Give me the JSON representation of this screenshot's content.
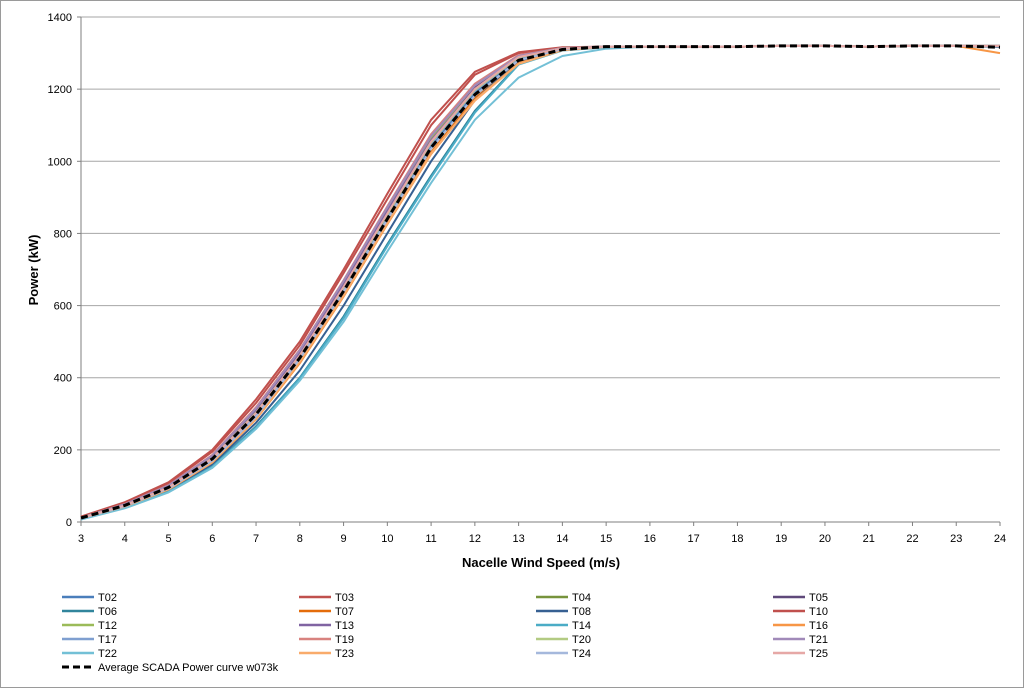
{
  "chart_data": {
    "type": "line",
    "title": "",
    "xlabel": "Nacelle Wind Speed (m/s)",
    "ylabel": "Power (kW)",
    "xlim": [
      3,
      24
    ],
    "ylim": [
      0,
      1400
    ],
    "x_ticks": [
      "3",
      "4",
      "5",
      "6",
      "7",
      "8",
      "9",
      "10",
      "11",
      "12",
      "13",
      "14",
      "15",
      "16",
      "17",
      "18",
      "19",
      "20",
      "21",
      "22",
      "23",
      "24"
    ],
    "y_ticks": [
      "0",
      "200",
      "400",
      "600",
      "800",
      "1000",
      "1200",
      "1400"
    ],
    "grid": "horizontal",
    "legend_position": "bottom",
    "x": [
      3,
      4,
      5,
      6,
      7,
      8,
      9,
      10,
      11,
      12,
      13,
      14,
      15,
      16,
      17,
      18,
      19,
      20,
      21,
      22,
      23,
      24
    ],
    "series": [
      {
        "name": "T02",
        "color": "#4a7ebb",
        "values": [
          10,
          45,
          95,
          170,
          295,
          455,
          640,
          840,
          1040,
          1190,
          1285,
          1312,
          1318,
          1318,
          1318,
          1318,
          1320,
          1320,
          1318,
          1320,
          1320,
          1318
        ]
      },
      {
        "name": "T03",
        "color": "#c0504d",
        "values": [
          15,
          55,
          110,
          200,
          340,
          500,
          700,
          910,
          1115,
          1248,
          1302,
          1316,
          1318,
          1318,
          1318,
          1318,
          1320,
          1320,
          1318,
          1320,
          1320,
          1320
        ]
      },
      {
        "name": "T04",
        "color": "#77933c",
        "values": [
          12,
          50,
          100,
          185,
          315,
          475,
          665,
          870,
          1065,
          1210,
          1292,
          1314,
          1318,
          1318,
          1318,
          1318,
          1320,
          1320,
          1318,
          1320,
          1320,
          1320
        ]
      },
      {
        "name": "T05",
        "color": "#5f497a",
        "values": [
          11,
          47,
          98,
          178,
          305,
          465,
          655,
          860,
          1060,
          1205,
          1290,
          1313,
          1318,
          1318,
          1318,
          1318,
          1320,
          1320,
          1318,
          1320,
          1320,
          1320
        ]
      },
      {
        "name": "T06",
        "color": "#31859c",
        "values": [
          8,
          40,
          85,
          155,
          265,
          400,
          570,
          770,
          960,
          1140,
          1270,
          1308,
          1316,
          1318,
          1318,
          1318,
          1320,
          1320,
          1318,
          1320,
          1320,
          1318
        ]
      },
      {
        "name": "T07",
        "color": "#e46c0a",
        "values": [
          10,
          44,
          92,
          168,
          290,
          450,
          632,
          830,
          1025,
          1175,
          1275,
          1310,
          1318,
          1318,
          1318,
          1318,
          1320,
          1320,
          1318,
          1320,
          1320,
          1318
        ]
      },
      {
        "name": "T08",
        "color": "#376092",
        "values": [
          9,
          42,
          88,
          160,
          275,
          420,
          600,
          800,
          1000,
          1170,
          1278,
          1310,
          1317,
          1318,
          1318,
          1318,
          1320,
          1320,
          1318,
          1320,
          1320,
          1318
        ]
      },
      {
        "name": "T10",
        "color": "#c0504d",
        "values": [
          14,
          53,
          107,
          195,
          330,
          490,
          690,
          895,
          1100,
          1240,
          1300,
          1315,
          1318,
          1318,
          1318,
          1318,
          1320,
          1320,
          1318,
          1320,
          1320,
          1320
        ]
      },
      {
        "name": "T12",
        "color": "#9bbb59",
        "values": [
          12,
          49,
          100,
          182,
          312,
          472,
          660,
          865,
          1062,
          1212,
          1293,
          1314,
          1318,
          1318,
          1318,
          1318,
          1320,
          1320,
          1318,
          1320,
          1320,
          1320
        ]
      },
      {
        "name": "T13",
        "color": "#8064a2",
        "values": [
          11,
          48,
          99,
          180,
          308,
          468,
          658,
          862,
          1058,
          1200,
          1288,
          1313,
          1318,
          1318,
          1318,
          1318,
          1320,
          1320,
          1318,
          1320,
          1320,
          1320
        ]
      },
      {
        "name": "T14",
        "color": "#4bacc6",
        "values": [
          8,
          40,
          84,
          153,
          262,
          398,
          565,
          765,
          955,
          1135,
          1268,
          1307,
          1316,
          1318,
          1318,
          1318,
          1320,
          1320,
          1318,
          1320,
          1320,
          1320
        ]
      },
      {
        "name": "T16",
        "color": "#f79646",
        "values": [
          10,
          43,
          90,
          165,
          285,
          440,
          625,
          825,
          1020,
          1170,
          1272,
          1309,
          1318,
          1318,
          1318,
          1318,
          1320,
          1320,
          1318,
          1320,
          1320,
          1300
        ]
      },
      {
        "name": "T17",
        "color": "#7f9fd0",
        "values": [
          11,
          46,
          96,
          175,
          300,
          460,
          648,
          850,
          1050,
          1195,
          1287,
          1312,
          1318,
          1318,
          1318,
          1318,
          1320,
          1320,
          1318,
          1320,
          1320,
          1320
        ]
      },
      {
        "name": "T19",
        "color": "#d8827f",
        "values": [
          12,
          50,
          102,
          186,
          318,
          478,
          670,
          875,
          1075,
          1215,
          1294,
          1314,
          1318,
          1318,
          1318,
          1318,
          1320,
          1320,
          1318,
          1320,
          1320,
          1320
        ]
      },
      {
        "name": "T20",
        "color": "#b3cb83",
        "values": [
          11,
          47,
          97,
          177,
          303,
          462,
          650,
          852,
          1052,
          1198,
          1288,
          1313,
          1318,
          1318,
          1318,
          1318,
          1320,
          1320,
          1318,
          1320,
          1320,
          1320
        ]
      },
      {
        "name": "T21",
        "color": "#a18ab9",
        "values": [
          12,
          49,
          101,
          184,
          315,
          476,
          668,
          872,
          1070,
          1210,
          1292,
          1314,
          1318,
          1318,
          1318,
          1318,
          1320,
          1320,
          1318,
          1320,
          1320,
          1320
        ]
      },
      {
        "name": "T22",
        "color": "#73c0d6",
        "values": [
          7,
          38,
          82,
          150,
          258,
          392,
          555,
          750,
          940,
          1115,
          1232,
          1292,
          1312,
          1318,
          1318,
          1318,
          1320,
          1320,
          1318,
          1320,
          1320,
          1320
        ]
      },
      {
        "name": "T23",
        "color": "#f9ab6b",
        "values": [
          10,
          43,
          91,
          166,
          287,
          445,
          628,
          828,
          1022,
          1168,
          1270,
          1308,
          1317,
          1318,
          1318,
          1318,
          1320,
          1320,
          1318,
          1320,
          1320,
          1320
        ]
      },
      {
        "name": "T24",
        "color": "#a5b8dc",
        "values": [
          10,
          44,
          93,
          170,
          292,
          452,
          638,
          838,
          1035,
          1182,
          1280,
          1311,
          1318,
          1318,
          1318,
          1318,
          1320,
          1320,
          1318,
          1320,
          1320,
          1320
        ]
      },
      {
        "name": "T25",
        "color": "#e6a8a6",
        "values": [
          11,
          46,
          96,
          176,
          302,
          462,
          652,
          855,
          1054,
          1200,
          1289,
          1313,
          1318,
          1318,
          1318,
          1318,
          1320,
          1320,
          1318,
          1320,
          1320,
          1320
        ]
      },
      {
        "name": "Average SCADA Power curve w073k",
        "color": "#000000",
        "dashed": true,
        "values": [
          11,
          46,
          96,
          175,
          298,
          455,
          640,
          840,
          1038,
          1185,
          1280,
          1310,
          1318,
          1318,
          1318,
          1318,
          1320,
          1320,
          1318,
          1320,
          1320,
          1316
        ]
      }
    ]
  }
}
